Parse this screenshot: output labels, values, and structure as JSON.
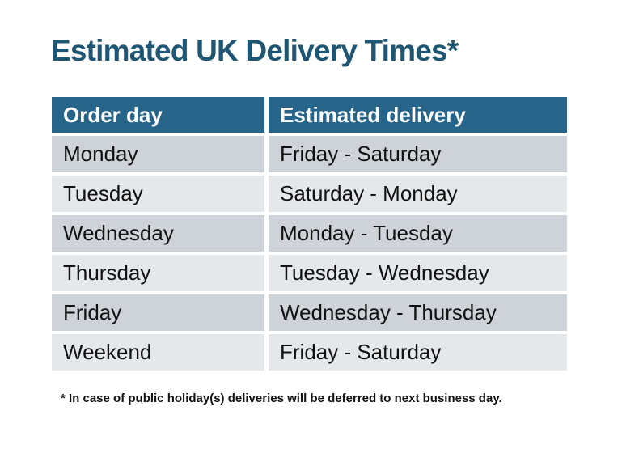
{
  "title": {
    "text": "Estimated UK Delivery Times*",
    "color": "#1f5673"
  },
  "table": {
    "header": {
      "order_day": "Order day",
      "estimated_delivery": "Estimated delivery",
      "background": "#26648a",
      "text_color": "#ffffff"
    },
    "row_colors": {
      "dark": "#ced3d9",
      "light": "#e5e8ea"
    },
    "rows": [
      {
        "order_day": "Monday",
        "estimated_delivery": "Friday - Saturday"
      },
      {
        "order_day": "Tuesday",
        "estimated_delivery": "Saturday - Monday"
      },
      {
        "order_day": "Wednesday",
        "estimated_delivery": "Monday - Tuesday"
      },
      {
        "order_day": "Thursday",
        "estimated_delivery": "Tuesday - Wednesday"
      },
      {
        "order_day": "Friday",
        "estimated_delivery": "Wednesday - Thursday"
      },
      {
        "order_day": "Weekend",
        "estimated_delivery": "Friday - Saturday"
      }
    ]
  },
  "footnote": {
    "text": "* In case of public holiday(s) deliveries will be deferred to next business day."
  }
}
